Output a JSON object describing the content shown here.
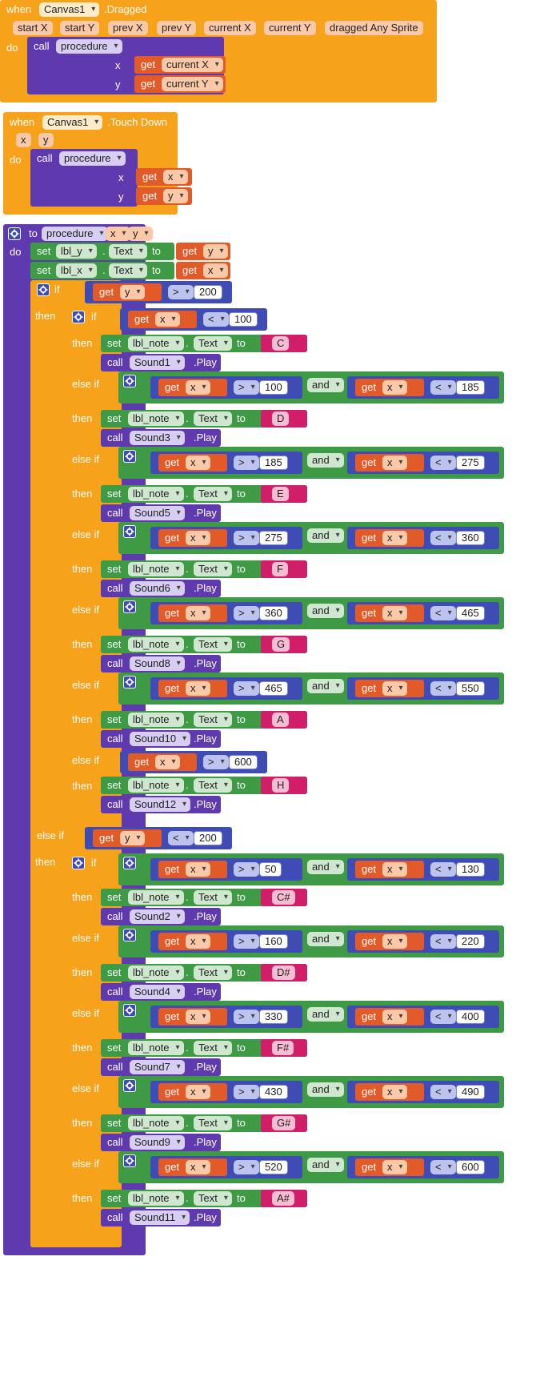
{
  "ev1": {
    "when": "when",
    "component": "Canvas1",
    "event": ".Dragged",
    "params": [
      "start X",
      "start Y",
      "prev X",
      "prev Y",
      "current X",
      "current Y",
      "dragged Any Sprite"
    ],
    "do": "do",
    "call": "call",
    "proc": "procedure",
    "arg1": "x",
    "arg2": "y",
    "get": "get",
    "v1": "current X",
    "v2": "current Y"
  },
  "ev2": {
    "when": "when",
    "component": "Canvas1",
    "event": ".Touch Down",
    "params": [
      "x",
      "y"
    ],
    "do": "do",
    "call": "call",
    "proc": "procedure",
    "arg1": "x",
    "arg2": "y",
    "get": "get",
    "v1": "x",
    "v2": "y"
  },
  "proc": {
    "to": "to",
    "name": "procedure",
    "params": [
      "x",
      "y"
    ],
    "do": "do",
    "set": "set",
    "to_kw": "to",
    "dot": ".",
    "lbl_y": "lbl_y",
    "lbl_x": "lbl_x",
    "lbl_note": "lbl_note",
    "text": "Text",
    "get": "get",
    "if": "if",
    "then": "then",
    "else_if": "else if",
    "call": "call",
    "and": "and",
    "play": ".Play",
    "y_var": "y",
    "x_var": "x"
  },
  "outer": [
    {
      "kw": "if",
      "op": ">",
      "num": "200"
    },
    {
      "kw": "else if",
      "op": "<",
      "num": "200"
    }
  ],
  "upper": [
    {
      "kw": "if",
      "simple": true,
      "op": "<",
      "n1": "100",
      "note": "C",
      "sound": "Sound1"
    },
    {
      "kw": "else if",
      "n1": "100",
      "n2": "185",
      "note": "D",
      "sound": "Sound3"
    },
    {
      "kw": "else if",
      "n1": "185",
      "n2": "275",
      "note": "E",
      "sound": "Sound5"
    },
    {
      "kw": "else if",
      "n1": "275",
      "n2": "360",
      "note": "F",
      "sound": "Sound6"
    },
    {
      "kw": "else if",
      "n1": "360",
      "n2": "465",
      "note": "G",
      "sound": "Sound8"
    },
    {
      "kw": "else if",
      "n1": "465",
      "n2": "550",
      "note": "A",
      "sound": "Sound10"
    },
    {
      "kw": "else if",
      "simple": true,
      "op": ">",
      "n1": "600",
      "note": "H",
      "sound": "Sound12"
    }
  ],
  "lower": [
    {
      "kw": "if",
      "n1": "50",
      "n2": "130",
      "note": "C#",
      "sound": "Sound2"
    },
    {
      "kw": "else if",
      "n1": "160",
      "n2": "220",
      "note": "D#",
      "sound": "Sound4"
    },
    {
      "kw": "else if",
      "n1": "330",
      "n2": "400",
      "note": "F#",
      "sound": "Sound7"
    },
    {
      "kw": "else if",
      "n1": "430",
      "n2": "490",
      "note": "G#",
      "sound": "Sound9"
    },
    {
      "kw": "else if",
      "n1": "520",
      "n2": "600",
      "note": "A#",
      "sound": "Sound11"
    }
  ],
  "ops": {
    "gt": ">",
    "lt": "<"
  },
  "colors": {
    "event": "#f7a21b",
    "procedure": "#5f3aae",
    "setter": "#3f9a45",
    "getter": "#e25a28",
    "math": "#3f4cb5",
    "text": "#d11e68"
  }
}
